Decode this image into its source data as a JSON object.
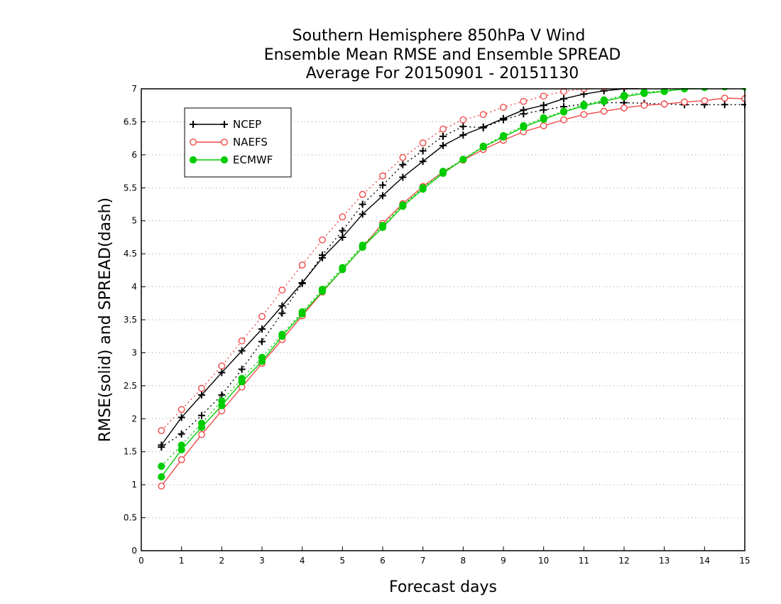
{
  "chart_data": {
    "type": "line",
    "title": "Southern Hemisphere 850hPa V Wind",
    "subtitle": "Ensemble Mean RMSE and Ensemble SPREAD",
    "subtitle2": "Average For 20150901 - 20151130",
    "xlabel": "Forecast days",
    "ylabel": "RMSE(solid) and SPREAD(dash)",
    "xlim": [
      0,
      15
    ],
    "ylim": [
      0,
      7
    ],
    "xticks": [
      "0",
      "1",
      "2",
      "3",
      "4",
      "5",
      "6",
      "7",
      "8",
      "9",
      "10",
      "11",
      "12",
      "13",
      "14",
      "15"
    ],
    "yticks": [
      "0",
      "0.5",
      "1",
      "1.5",
      "2",
      "2.5",
      "3",
      "3.5",
      "4",
      "4.5",
      "5",
      "5.5",
      "6",
      "6.5",
      "7"
    ],
    "grid": "dotted horizontal",
    "legend_position": "top-left",
    "x": [
      0.5,
      1,
      1.5,
      2,
      2.5,
      3,
      3.5,
      4,
      4.5,
      5,
      5.5,
      6,
      6.5,
      7,
      7.5,
      8,
      8.5,
      9,
      9.5,
      10,
      10.5,
      11,
      11.5,
      12,
      12.5,
      13,
      13.5,
      14,
      14.5,
      15
    ],
    "series": [
      {
        "name": "NCEP",
        "style": "solid",
        "marker": "plus",
        "color": "#000000",
        "values": [
          1.6,
          2.02,
          2.36,
          2.7,
          3.03,
          3.36,
          3.71,
          4.06,
          4.44,
          4.75,
          5.1,
          5.38,
          5.66,
          5.9,
          6.14,
          6.3,
          6.42,
          6.55,
          6.68,
          6.75,
          6.85,
          6.92,
          6.97,
          7.0,
          7.02,
          7.03,
          7.04,
          7.05,
          7.05,
          7.05
        ]
      },
      {
        "name": "NCEP",
        "style": "dotted",
        "marker": "plus",
        "color": "#000000",
        "values": [
          1.57,
          1.77,
          2.05,
          2.36,
          2.75,
          3.17,
          3.6,
          4.05,
          4.48,
          4.85,
          5.25,
          5.54,
          5.85,
          6.06,
          6.28,
          6.43,
          6.41,
          6.53,
          6.62,
          6.68,
          6.73,
          6.77,
          6.79,
          6.79,
          6.78,
          6.77,
          6.76,
          6.76,
          6.76,
          6.76
        ]
      },
      {
        "name": "NAEFS",
        "style": "solid",
        "marker": "circle",
        "color": "#f04848",
        "values": [
          0.98,
          1.38,
          1.76,
          2.12,
          2.48,
          2.84,
          3.2,
          3.56,
          3.92,
          4.26,
          4.6,
          4.96,
          5.26,
          5.52,
          5.74,
          5.92,
          6.08,
          6.22,
          6.35,
          6.44,
          6.53,
          6.61,
          6.66,
          6.71,
          6.75,
          6.77,
          6.8,
          6.82,
          6.86,
          6.85
        ]
      },
      {
        "name": "NAEFS",
        "style": "dotted",
        "marker": "circle",
        "color": "#f04848",
        "values": [
          1.82,
          2.14,
          2.46,
          2.8,
          3.18,
          3.55,
          3.95,
          4.33,
          4.71,
          5.06,
          5.4,
          5.68,
          5.96,
          6.18,
          6.39,
          6.53,
          6.61,
          6.72,
          6.81,
          6.89,
          6.96,
          7.0,
          7.03,
          7.05,
          7.06,
          7.07,
          7.07,
          7.08,
          7.08,
          7.08
        ]
      },
      {
        "name": "ECMWF",
        "style": "solid",
        "marker": "dot",
        "color": "#00cc00",
        "values": [
          1.12,
          1.53,
          1.87,
          2.2,
          2.56,
          2.87,
          3.25,
          3.59,
          3.93,
          4.26,
          4.6,
          4.9,
          5.22,
          5.48,
          5.72,
          5.93,
          6.12,
          6.27,
          6.42,
          6.54,
          6.65,
          6.74,
          6.81,
          6.88,
          6.93,
          6.96,
          7.0,
          7.02,
          7.03,
          7.03
        ]
      },
      {
        "name": "ECMWF",
        "style": "dotted",
        "marker": "dot",
        "color": "#00cc00",
        "values": [
          1.28,
          1.6,
          1.93,
          2.27,
          2.61,
          2.93,
          3.28,
          3.62,
          3.96,
          4.29,
          4.63,
          4.93,
          5.24,
          5.5,
          5.75,
          5.93,
          6.13,
          6.29,
          6.44,
          6.56,
          6.66,
          6.76,
          6.83,
          6.9,
          6.95,
          6.97,
          7.01,
          7.03,
          7.04,
          7.04
        ]
      }
    ],
    "legend": [
      {
        "label": "NCEP",
        "marker": "plus",
        "color": "#000000"
      },
      {
        "label": "NAEFS",
        "marker": "circle",
        "color": "#f04848"
      },
      {
        "label": "ECMWF",
        "marker": "dot",
        "color": "#00cc00"
      }
    ]
  }
}
